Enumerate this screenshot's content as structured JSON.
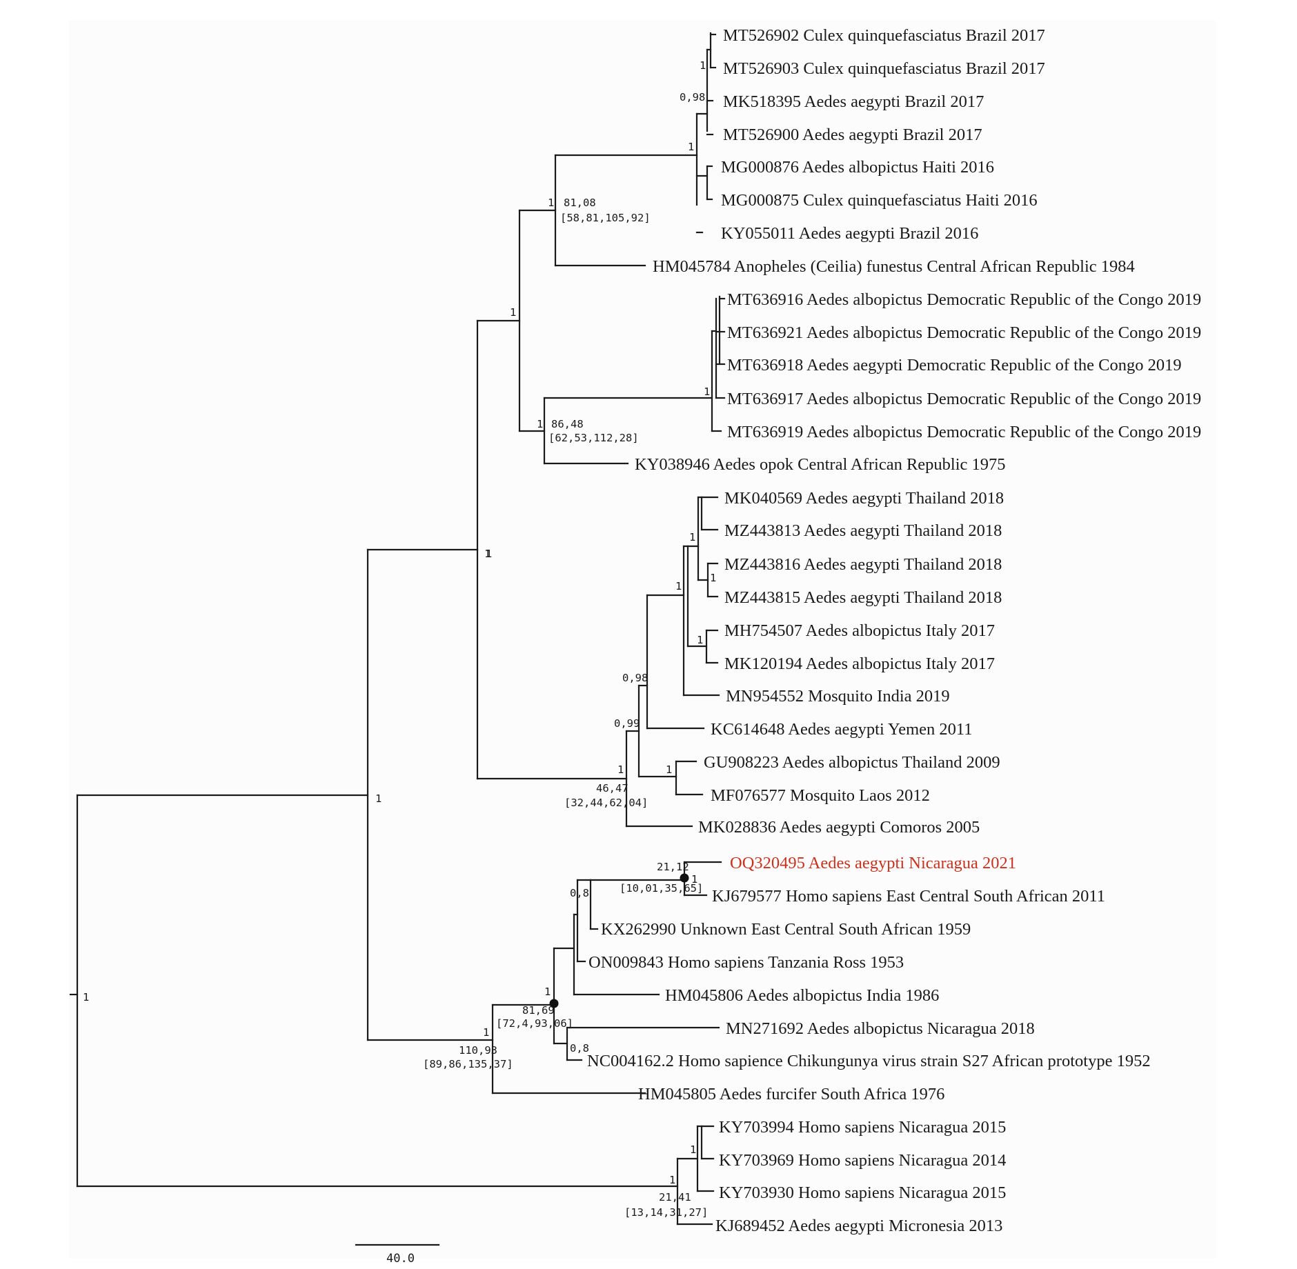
{
  "tree": {
    "highlight_color": "#c8321e",
    "line_color": "#1a1a1a",
    "scale_bar": {
      "label": "40.0"
    },
    "tips": [
      {
        "id": "t1",
        "label": "MT526902 Culex quinquefasciatus Brazil 2017"
      },
      {
        "id": "t2",
        "label": "MT526903 Culex quinquefasciatus Brazil 2017"
      },
      {
        "id": "t3",
        "label": "MK518395 Aedes aegypti Brazil 2017"
      },
      {
        "id": "t4",
        "label": "MT526900 Aedes aegypti Brazil 2017"
      },
      {
        "id": "t5",
        "label": "MG000876 Aedes albopictus Haiti 2016"
      },
      {
        "id": "t6",
        "label": "MG000875 Culex quinquefasciatus Haiti 2016"
      },
      {
        "id": "t7",
        "label": "KY055011 Aedes aegypti Brazil 2016"
      },
      {
        "id": "t8",
        "label": "HM045784 Anopheles (Ceilia) funestus Central African Republic 1984"
      },
      {
        "id": "t9",
        "label": "MT636916 Aedes albopictus Democratic Republic of the Congo 2019"
      },
      {
        "id": "t10",
        "label": "MT636921 Aedes albopictus Democratic Republic of the Congo 2019"
      },
      {
        "id": "t11",
        "label": "MT636918 Aedes aegypti Democratic Republic of the Congo 2019"
      },
      {
        "id": "t12",
        "label": "MT636917 Aedes albopictus Democratic Republic of the Congo 2019"
      },
      {
        "id": "t13",
        "label": "MT636919 Aedes albopictus Democratic Republic of the Congo 2019"
      },
      {
        "id": "t14",
        "label": "KY038946 Aedes opok Central African Republic 1975"
      },
      {
        "id": "t15",
        "label": "MK040569 Aedes aegypti Thailand 2018"
      },
      {
        "id": "t16",
        "label": "MZ443813 Aedes aegypti Thailand 2018"
      },
      {
        "id": "t17",
        "label": "MZ443816 Aedes aegypti Thailand 2018"
      },
      {
        "id": "t18",
        "label": "MZ443815 Aedes aegypti Thailand 2018"
      },
      {
        "id": "t19",
        "label": "MH754507 Aedes albopictus Italy 2017"
      },
      {
        "id": "t20",
        "label": "MK120194 Aedes albopictus Italy 2017"
      },
      {
        "id": "t21",
        "label": "MN954552 Mosquito India 2019"
      },
      {
        "id": "t22",
        "label": "KC614648 Aedes aegypti Yemen 2011"
      },
      {
        "id": "t23",
        "label": "GU908223 Aedes albopictus Thailand 2009"
      },
      {
        "id": "t24",
        "label": "MF076577 Mosquito Laos 2012"
      },
      {
        "id": "t25",
        "label": "MK028836 Aedes aegypti Comoros 2005"
      },
      {
        "id": "t26",
        "label": "OQ320495 Aedes aegypti Nicaragua 2021",
        "highlight": true
      },
      {
        "id": "t27",
        "label": "KJ679577 Homo sapiens East Central South African 2011"
      },
      {
        "id": "t28",
        "label": "KX262990 Unknown East Central South African 1959"
      },
      {
        "id": "t29",
        "label": "ON009843 Homo sapiens Tanzania Ross 1953"
      },
      {
        "id": "t30",
        "label": "HM045806 Aedes albopictus India 1986"
      },
      {
        "id": "t31",
        "label": "MN271692 Aedes albopictus Nicaragua 2018"
      },
      {
        "id": "t32",
        "label": "NC004162.2 Homo sapience Chikungunya virus strain S27 African prototype 1952"
      },
      {
        "id": "t33",
        "label": "HM045805 Aedes furcifer South Africa 1976"
      },
      {
        "id": "t34",
        "label": "KY703994 Homo sapiens Nicaragua 2015"
      },
      {
        "id": "t35",
        "label": "KY703969 Homo sapiens Nicaragua 2014"
      },
      {
        "id": "t36",
        "label": "KY703930 Homo sapiens Nicaragua 2015"
      },
      {
        "id": "t37",
        "label": "KJ689452 Aedes aegypti Micronesia 2013"
      }
    ],
    "node_labels": [
      {
        "id": "n-root",
        "text": "1"
      },
      {
        "id": "n-major-a",
        "text": "1"
      },
      {
        "id": "n-major-b",
        "text": "1"
      },
      {
        "id": "n-upper",
        "text": "1"
      },
      {
        "id": "n-americas",
        "text": "1"
      },
      {
        "id": "n-americas-age",
        "text": "81,08"
      },
      {
        "id": "n-americas-hpd",
        "text": "[58,81,105,92]"
      },
      {
        "id": "n-brazil-haiti",
        "text": "1"
      },
      {
        "id": "n-brazil",
        "text": "0,98"
      },
      {
        "id": "n-brazil-sub",
        "text": "1"
      },
      {
        "id": "n-congo",
        "text": "1"
      },
      {
        "id": "n-congo-age",
        "text": "86,48"
      },
      {
        "id": "n-congo-hpd",
        "text": "[62,53,112,28]"
      },
      {
        "id": "n-congo-sub",
        "text": "1"
      },
      {
        "id": "n-asia-support",
        "text": "1"
      },
      {
        "id": "n-ecsa-io",
        "text": "1"
      },
      {
        "id": "n-io-age",
        "text": "46,47"
      },
      {
        "id": "n-io-hpd",
        "text": "[32,44,62,04]"
      },
      {
        "id": "n-io-a",
        "text": "0,99"
      },
      {
        "id": "n-io-b",
        "text": "0,98"
      },
      {
        "id": "n-asia-c",
        "text": "1"
      },
      {
        "id": "n-thai",
        "text": "1"
      },
      {
        "id": "n-thai-sub",
        "text": "1"
      },
      {
        "id": "n-italy",
        "text": "1"
      },
      {
        "id": "n-laos",
        "text": "1"
      },
      {
        "id": "n-wa",
        "text": "1"
      },
      {
        "id": "n-wa-age",
        "text": "110,93"
      },
      {
        "id": "n-wa-hpd",
        "text": "[89,86,135,37]"
      },
      {
        "id": "n-dot2",
        "text": "1"
      },
      {
        "id": "n-dot2-age",
        "text": "81,69"
      },
      {
        "id": "n-dot2-hpd",
        "text": "[72,4,93,06]"
      },
      {
        "id": "n-ecsa-mid",
        "text": "0,8"
      },
      {
        "id": "n-dot1-age",
        "text": "21,12"
      },
      {
        "id": "n-dot1-hpd",
        "text": "[10,01,35,65]"
      },
      {
        "id": "n-dot1",
        "text": "1"
      },
      {
        "id": "n-nic-pair",
        "text": "0,8"
      },
      {
        "id": "n-nic",
        "text": "1"
      },
      {
        "id": "n-nic-age",
        "text": "21,41"
      },
      {
        "id": "n-nic-hpd",
        "text": "[13,14,31,27]"
      },
      {
        "id": "n-nic-sub",
        "text": "1"
      }
    ]
  }
}
